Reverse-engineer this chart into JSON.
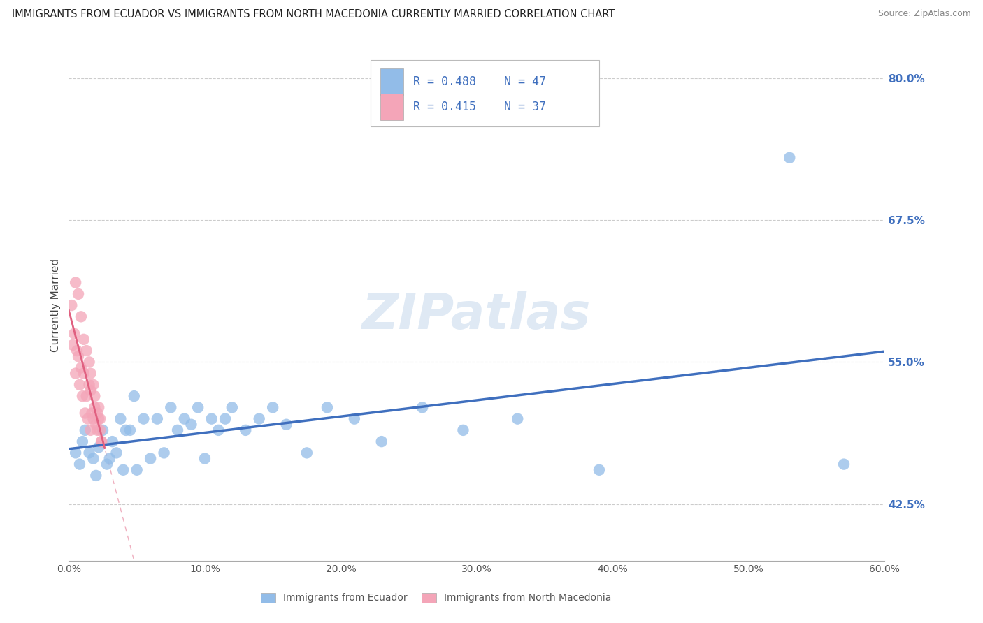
{
  "title": "IMMIGRANTS FROM ECUADOR VS IMMIGRANTS FROM NORTH MACEDONIA CURRENTLY MARRIED CORRELATION CHART",
  "source": "Source: ZipAtlas.com",
  "ylabel": "Currently Married",
  "xlim": [
    0.0,
    0.6
  ],
  "ylim": [
    0.375,
    0.825
  ],
  "ytick_labels": [
    "42.5%",
    "55.0%",
    "67.5%",
    "80.0%"
  ],
  "ytick_values": [
    0.425,
    0.55,
    0.675,
    0.8
  ],
  "ecuador_color": "#92bce8",
  "north_macedonia_color": "#f4a5b8",
  "ecuador_line_color": "#3f6fbe",
  "north_macedonia_line_color": "#e06080",
  "R_ecuador": 0.488,
  "N_ecuador": 47,
  "R_north_macedonia": 0.415,
  "N_north_macedonia": 37,
  "ecuador_scatter_x": [
    0.005,
    0.008,
    0.01,
    0.012,
    0.015,
    0.018,
    0.02,
    0.022,
    0.025,
    0.028,
    0.03,
    0.032,
    0.035,
    0.038,
    0.04,
    0.042,
    0.045,
    0.048,
    0.05,
    0.055,
    0.06,
    0.065,
    0.07,
    0.075,
    0.08,
    0.085,
    0.09,
    0.095,
    0.1,
    0.105,
    0.11,
    0.115,
    0.12,
    0.13,
    0.14,
    0.15,
    0.16,
    0.175,
    0.19,
    0.21,
    0.23,
    0.26,
    0.29,
    0.33,
    0.39,
    0.53,
    0.57
  ],
  "ecuador_scatter_y": [
    0.47,
    0.46,
    0.48,
    0.49,
    0.47,
    0.465,
    0.45,
    0.475,
    0.49,
    0.46,
    0.465,
    0.48,
    0.47,
    0.5,
    0.455,
    0.49,
    0.49,
    0.52,
    0.455,
    0.5,
    0.465,
    0.5,
    0.47,
    0.51,
    0.49,
    0.5,
    0.495,
    0.51,
    0.465,
    0.5,
    0.49,
    0.5,
    0.51,
    0.49,
    0.5,
    0.51,
    0.495,
    0.47,
    0.51,
    0.5,
    0.48,
    0.51,
    0.49,
    0.5,
    0.455,
    0.73,
    0.46
  ],
  "north_macedonia_scatter_x": [
    0.002,
    0.003,
    0.004,
    0.005,
    0.006,
    0.007,
    0.008,
    0.009,
    0.01,
    0.011,
    0.012,
    0.013,
    0.014,
    0.015,
    0.016,
    0.016,
    0.017,
    0.018,
    0.019,
    0.02,
    0.021,
    0.021,
    0.022,
    0.023,
    0.023,
    0.024,
    0.024,
    0.005,
    0.007,
    0.009,
    0.011,
    0.013,
    0.015,
    0.016,
    0.018,
    0.019,
    0.022
  ],
  "north_macedonia_scatter_y": [
    0.6,
    0.565,
    0.575,
    0.54,
    0.56,
    0.555,
    0.53,
    0.545,
    0.52,
    0.54,
    0.505,
    0.52,
    0.5,
    0.53,
    0.49,
    0.525,
    0.505,
    0.5,
    0.51,
    0.495,
    0.49,
    0.505,
    0.5,
    0.49,
    0.5,
    0.48,
    0.48,
    0.62,
    0.61,
    0.59,
    0.57,
    0.56,
    0.55,
    0.54,
    0.53,
    0.52,
    0.51
  ],
  "watermark_text": "ZIPatlas",
  "background_color": "#ffffff",
  "grid_color": "#cccccc",
  "ecuador_label": "Immigrants from Ecuador",
  "north_macedonia_label": "Immigrants from North Macedonia"
}
